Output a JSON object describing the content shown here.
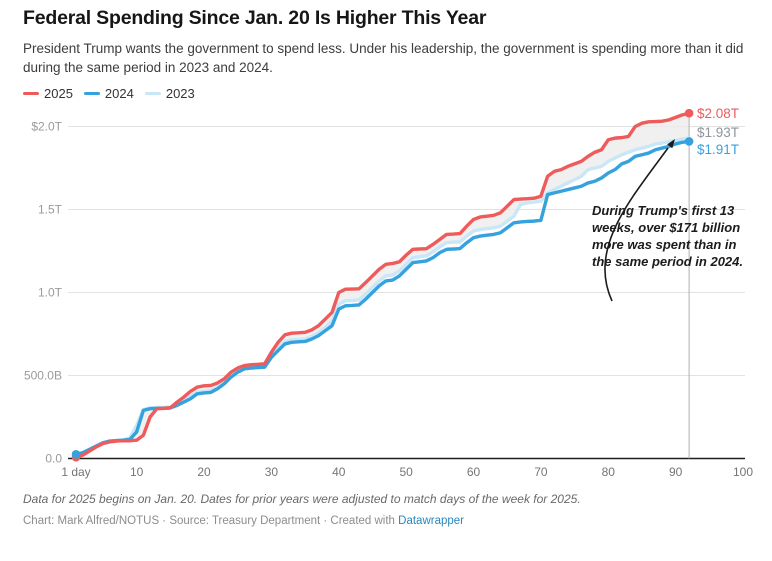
{
  "header": {
    "title": "Federal Spending Since Jan. 20 Is Higher This Year",
    "description": "President Trump wants the government to spend less. Under his leadership, the government is spending more than it did during the same period in 2023 and 2024."
  },
  "legend": [
    {
      "label": "2025",
      "color": "#ef5b5b"
    },
    {
      "label": "2024",
      "color": "#35a2de"
    },
    {
      "label": "2023",
      "color": "#c9e7f7"
    }
  ],
  "chart_data": {
    "type": "line",
    "title": "Federal Spending Since Jan. 20 Is Higher This Year",
    "x_unit": "day (index = day number, day 1 = Jan. 20)",
    "y_unit": "billions of US dollars (cumulative spending)",
    "xlim": [
      1,
      100
    ],
    "ylim": [
      0,
      2000
    ],
    "grid": "horizontal only",
    "legend_position": "top-left",
    "marker_day": 92,
    "x_ticks": [
      {
        "day": 1,
        "label": "1 day"
      },
      {
        "day": 10,
        "label": "10"
      },
      {
        "day": 20,
        "label": "20"
      },
      {
        "day": 30,
        "label": "30"
      },
      {
        "day": 40,
        "label": "40"
      },
      {
        "day": 50,
        "label": "50"
      },
      {
        "day": 60,
        "label": "60"
      },
      {
        "day": 70,
        "label": "70"
      },
      {
        "day": 80,
        "label": "80"
      },
      {
        "day": 90,
        "label": "90"
      },
      {
        "day": 100,
        "label": "100"
      }
    ],
    "y_ticks": [
      {
        "value": 2000,
        "label": "$2.0T"
      },
      {
        "value": 1500,
        "label": "1.5T"
      },
      {
        "value": 1000,
        "label": "1.0T"
      },
      {
        "value": 500,
        "label": "500.0B"
      },
      {
        "value": 0,
        "label": "0.0"
      }
    ],
    "series": [
      {
        "name": "2025",
        "color": "#ef5b5b",
        "end_label": "$2.08T",
        "end_value_billions": 2080,
        "values": [
          8,
          20,
          45,
          70,
          90,
          100,
          105,
          107,
          107,
          110,
          140,
          250,
          300,
          302,
          305,
          340,
          370,
          405,
          430,
          438,
          440,
          455,
          480,
          520,
          545,
          560,
          565,
          567,
          570,
          640,
          700,
          745,
          755,
          757,
          760,
          775,
          800,
          840,
          880,
          1000,
          1020,
          1021,
          1022,
          1060,
          1100,
          1140,
          1170,
          1175,
          1185,
          1225,
          1260,
          1262,
          1264,
          1290,
          1320,
          1350,
          1352,
          1355,
          1400,
          1440,
          1455,
          1460,
          1465,
          1480,
          1520,
          1560,
          1563,
          1565,
          1568,
          1580,
          1700,
          1730,
          1740,
          1760,
          1775,
          1790,
          1820,
          1845,
          1860,
          1920,
          1930,
          1933,
          1940,
          2000,
          2020,
          2028,
          2030,
          2032,
          2040,
          2055,
          2070,
          2080
        ]
      },
      {
        "name": "2024",
        "color": "#35a2de",
        "end_label": "$1.91T",
        "end_value_billions": 1910,
        "values": [
          25,
          35,
          55,
          75,
          95,
          105,
          108,
          110,
          115,
          160,
          290,
          300,
          302,
          303,
          305,
          320,
          340,
          360,
          390,
          395,
          398,
          420,
          450,
          490,
          520,
          540,
          545,
          548,
          550,
          610,
          650,
          690,
          700,
          703,
          705,
          720,
          740,
          770,
          800,
          900,
          920,
          922,
          925,
          960,
          1000,
          1040,
          1070,
          1075,
          1100,
          1140,
          1180,
          1185,
          1190,
          1210,
          1240,
          1260,
          1262,
          1265,
          1300,
          1330,
          1340,
          1345,
          1350,
          1360,
          1390,
          1420,
          1425,
          1428,
          1430,
          1435,
          1590,
          1600,
          1610,
          1620,
          1630,
          1640,
          1660,
          1670,
          1690,
          1720,
          1740,
          1775,
          1790,
          1820,
          1830,
          1840,
          1860,
          1870,
          1880,
          1895,
          1905,
          1910
        ]
      },
      {
        "name": "2023",
        "color": "#c9e7f7",
        "end_label": "$1.93T",
        "end_label_color": "#8e959b",
        "end_value_billions": 1930,
        "values": [
          20,
          32,
          52,
          73,
          93,
          103,
          107,
          112,
          125,
          200,
          295,
          305,
          307,
          308,
          310,
          330,
          350,
          375,
          400,
          405,
          408,
          430,
          460,
          500,
          530,
          550,
          555,
          558,
          560,
          620,
          665,
          705,
          715,
          718,
          720,
          735,
          760,
          790,
          830,
          930,
          950,
          952,
          955,
          990,
          1030,
          1070,
          1100,
          1105,
          1130,
          1170,
          1210,
          1215,
          1220,
          1245,
          1275,
          1300,
          1303,
          1305,
          1340,
          1370,
          1380,
          1385,
          1390,
          1400,
          1430,
          1460,
          1530,
          1540,
          1545,
          1550,
          1600,
          1620,
          1640,
          1660,
          1680,
          1700,
          1740,
          1750,
          1760,
          1790,
          1810,
          1830,
          1845,
          1860,
          1870,
          1880,
          1895,
          1900,
          1910,
          1915,
          1925,
          1930
        ]
      }
    ],
    "annotation": {
      "text": "During Trump's first 13 weeks, over $171 billion more was spent than in the same period in 2024."
    }
  },
  "footer": {
    "note": "Data for 2025 begins on Jan. 20. Dates for prior years were adjusted to match days of the week for 2025.",
    "byline_prefix": "Chart: Mark Alfred/NOTUS · Source: Treasury Department · Created with ",
    "byline_link": "Datawrapper"
  }
}
